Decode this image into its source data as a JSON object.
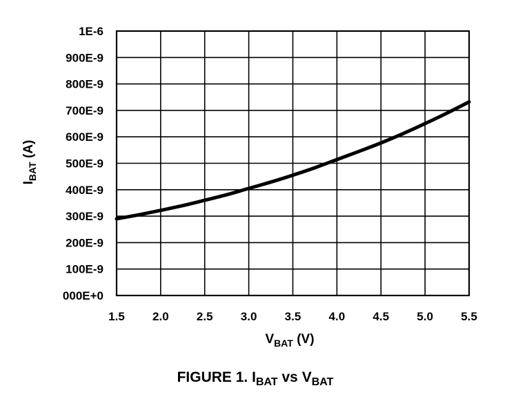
{
  "chart_data": {
    "type": "line",
    "caption": {
      "prefix": "FIGURE 1.",
      "y_main": "I",
      "y_sub": "BAT",
      "middle": "vs",
      "x_main": "V",
      "x_sub": "BAT"
    },
    "xlabel": {
      "main": "V",
      "sub": "BAT",
      "unit": "(V)"
    },
    "ylabel": {
      "main": "I",
      "sub": "BAT",
      "unit": "(A)"
    },
    "xlim": [
      1.5,
      5.5
    ],
    "ylim": [
      0,
      1e-06
    ],
    "grid": true,
    "x_ticks": [
      {
        "value": 1.5,
        "label": "1.5"
      },
      {
        "value": 2.0,
        "label": "2.0"
      },
      {
        "value": 2.5,
        "label": "2.5"
      },
      {
        "value": 3.0,
        "label": "3.0"
      },
      {
        "value": 3.5,
        "label": "3.5"
      },
      {
        "value": 4.0,
        "label": "4.0"
      },
      {
        "value": 4.5,
        "label": "4.5"
      },
      {
        "value": 5.0,
        "label": "5.0"
      },
      {
        "value": 5.5,
        "label": "5.5"
      }
    ],
    "y_ticks": [
      {
        "value": 0,
        "label": "000E+0"
      },
      {
        "value": 1e-07,
        "label": "100E-9"
      },
      {
        "value": 2e-07,
        "label": "200E-9"
      },
      {
        "value": 3e-07,
        "label": "300E-9"
      },
      {
        "value": 4e-07,
        "label": "400E-9"
      },
      {
        "value": 5e-07,
        "label": "500E-9"
      },
      {
        "value": 6e-07,
        "label": "600E-9"
      },
      {
        "value": 7e-07,
        "label": "700E-9"
      },
      {
        "value": 8e-07,
        "label": "800E-9"
      },
      {
        "value": 9e-07,
        "label": "900E-9"
      },
      {
        "value": 1e-06,
        "label": "1E-6"
      }
    ],
    "series": [
      {
        "color": "#000000",
        "x": [
          1.5,
          1.75,
          2.0,
          2.25,
          2.5,
          2.75,
          3.0,
          3.25,
          3.5,
          3.75,
          4.0,
          4.25,
          4.5,
          4.75,
          5.0,
          5.25,
          5.5
        ],
        "y": [
          2.9e-07,
          3.05e-07,
          3.22e-07,
          3.4e-07,
          3.6e-07,
          3.81e-07,
          4.05e-07,
          4.29e-07,
          4.55e-07,
          4.83e-07,
          5.14e-07,
          5.45e-07,
          5.77e-07,
          6.12e-07,
          6.5e-07,
          6.9e-07,
          7.32e-07
        ]
      }
    ]
  }
}
